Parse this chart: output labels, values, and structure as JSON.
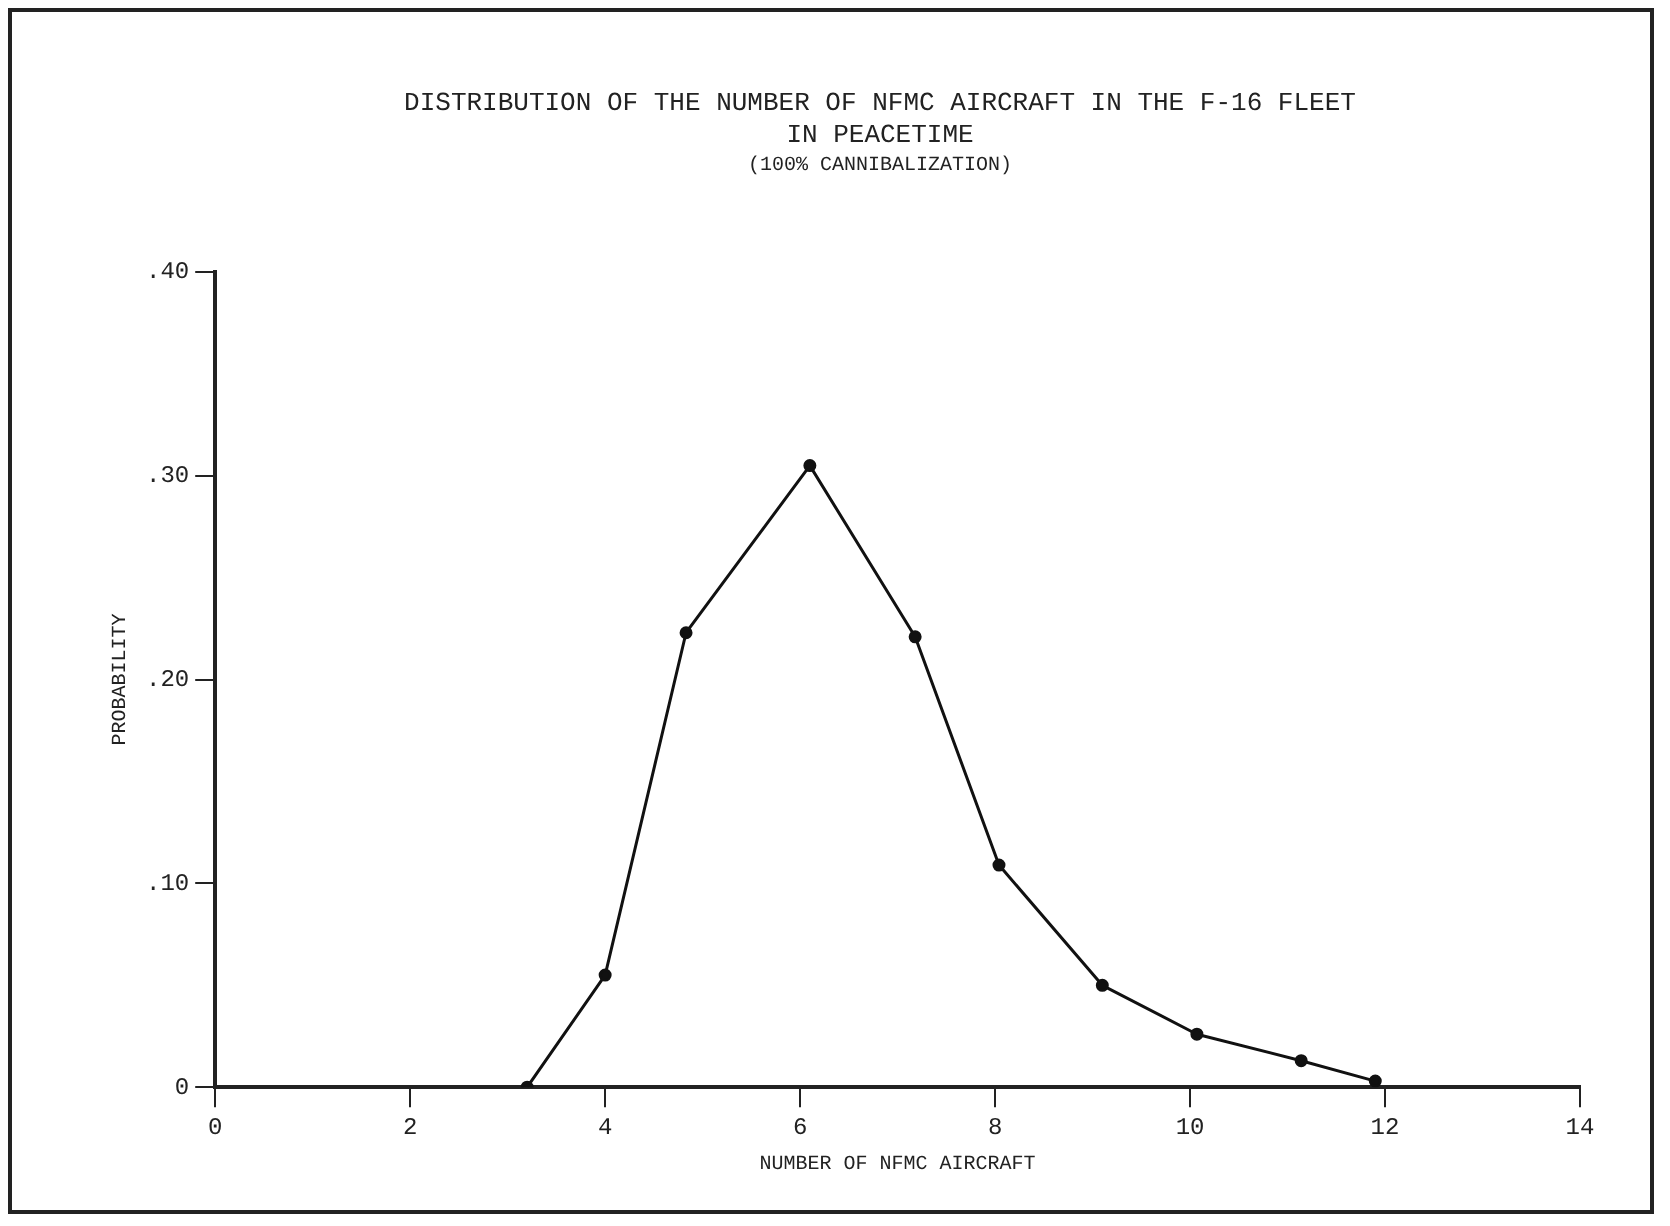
{
  "chart_data": {
    "type": "line",
    "title": "DISTRIBUTION OF THE NUMBER OF NFMC AIRCRAFT IN THE F-16 FLEET IN PEACETIME",
    "subtitle": "(100% CANNIBALIZATION)",
    "xlabel": "NUMBER OF NFMC AIRCRAFT",
    "ylabel": "PROBABILITY",
    "x": [
      3.2,
      4.0,
      4.83,
      6.1,
      7.18,
      8.04,
      9.1,
      10.07,
      11.14,
      11.9
    ],
    "series": [
      {
        "color": "#111111",
        "values": [
          0,
          0.055,
          0.223,
          0.305,
          0.221,
          0.109,
          0.05,
          0.026,
          0.013,
          0.003
        ]
      }
    ],
    "xlim": [
      0,
      14
    ],
    "xticks": [
      0,
      2,
      4,
      6,
      8,
      10,
      12,
      14
    ],
    "ylim": [
      0,
      0.4
    ],
    "yticks": [
      {
        "value": 0,
        "label": "0"
      },
      {
        "value": 0.1,
        "label": ".10"
      },
      {
        "value": 0.2,
        "label": ".20"
      },
      {
        "value": 0.3,
        "label": ".30"
      },
      {
        "value": 0.4,
        "label": ".40"
      }
    ],
    "grid": false,
    "legend": false,
    "marker": "circle",
    "line_style": "solid"
  }
}
